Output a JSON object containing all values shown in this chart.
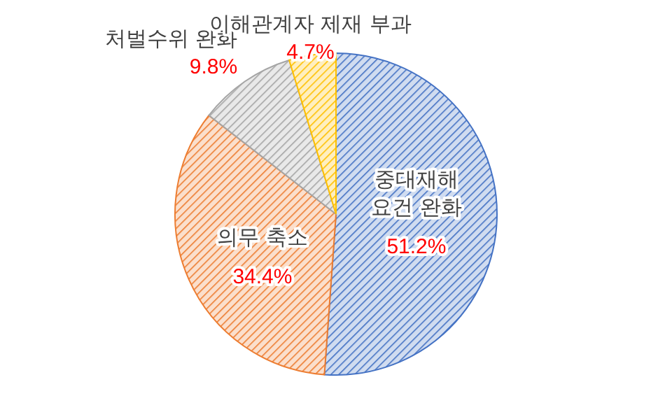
{
  "chart_data": {
    "type": "pie",
    "categories": [
      "중대재해 요건 완화",
      "의무 축소",
      "처벌수위 완화",
      "이해관계자 제재 부과"
    ],
    "values": [
      51.2,
      34.4,
      9.8,
      4.7
    ],
    "colors": [
      "#4472c4",
      "#ed7d31",
      "#a5a5a5",
      "#ffc000"
    ],
    "value_labels": [
      "51.2%",
      "34.4%",
      "9.8%",
      "4.7%"
    ]
  }
}
